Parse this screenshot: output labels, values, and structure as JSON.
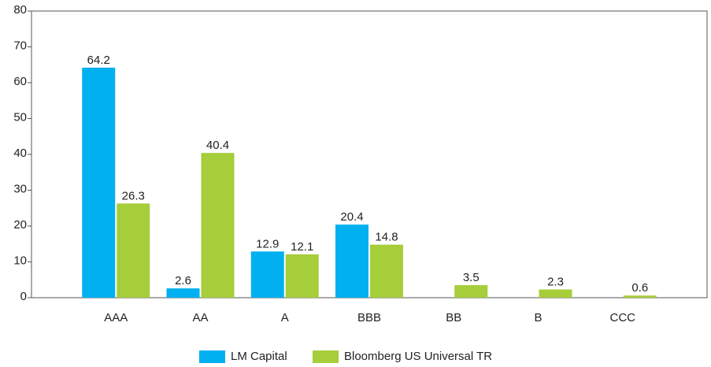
{
  "chart_data": {
    "type": "bar",
    "categories": [
      "AAA",
      "AA",
      "A",
      "BBB",
      "BB",
      "B",
      "CCC"
    ],
    "series": [
      {
        "name": "LM Capital",
        "color": "#00b0f0",
        "values": [
          64.2,
          2.6,
          12.9,
          20.4,
          null,
          null,
          null
        ]
      },
      {
        "name": "Bloomberg US Universal TR",
        "color": "#a6cd3a",
        "values": [
          26.3,
          40.4,
          12.1,
          14.8,
          3.5,
          2.3,
          0.6
        ]
      }
    ],
    "ylim": [
      0,
      80
    ],
    "yticks": [
      0,
      10,
      20,
      30,
      40,
      50,
      60,
      70,
      80
    ],
    "grid": false,
    "legend": "bottom"
  }
}
